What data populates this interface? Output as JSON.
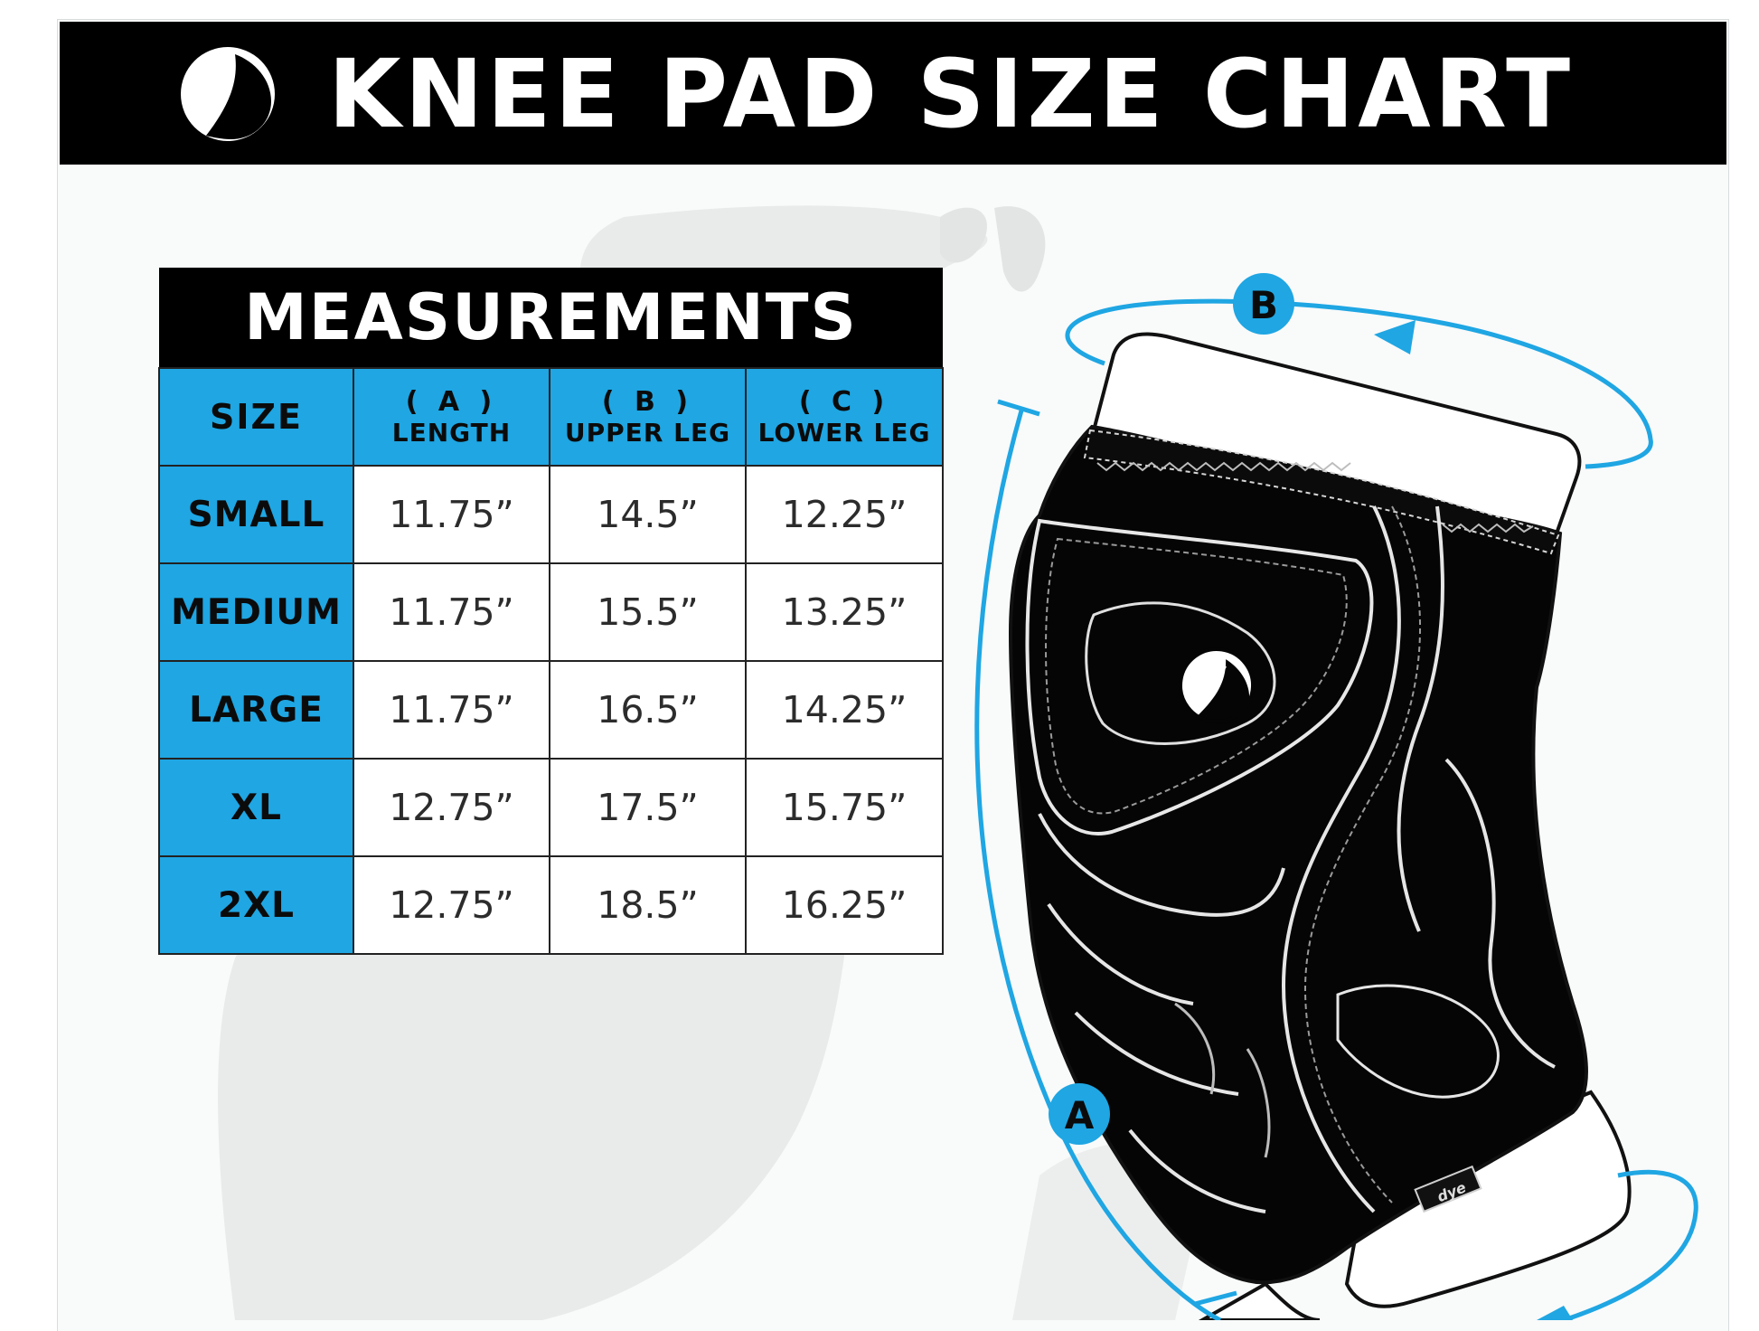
{
  "header": {
    "title": "KNEE PAD SIZE CHART"
  },
  "table": {
    "caption": "MEASUREMENTS",
    "columns": [
      {
        "key": "",
        "name": "SIZE"
      },
      {
        "key": "( A )",
        "name": "LENGTH"
      },
      {
        "key": "( B )",
        "name": "UPPER LEG"
      },
      {
        "key": "( C )",
        "name": "LOWER LEG"
      }
    ],
    "rows": [
      {
        "size": "SMALL",
        "length": "11.75”",
        "upper_leg": "14.5”",
        "lower_leg": "12.25”"
      },
      {
        "size": "MEDIUM",
        "length": "11.75”",
        "upper_leg": "15.5”",
        "lower_leg": "13.25”"
      },
      {
        "size": "LARGE",
        "length": "11.75”",
        "upper_leg": "16.5”",
        "lower_leg": "14.25”"
      },
      {
        "size": "XL",
        "length": "12.75”",
        "upper_leg": "17.5”",
        "lower_leg": "15.75”"
      },
      {
        "size": "2XL",
        "length": "12.75”",
        "upper_leg": "18.5”",
        "lower_leg": "16.25”"
      }
    ]
  },
  "diagram": {
    "label_a": "A",
    "label_b": "B",
    "pad_tag": "dye"
  },
  "colors": {
    "accent": "#1fa6e3",
    "header_bg": "#000000",
    "text": "#0b0b0b"
  },
  "icons": {
    "brand": "dye-logo-icon"
  }
}
